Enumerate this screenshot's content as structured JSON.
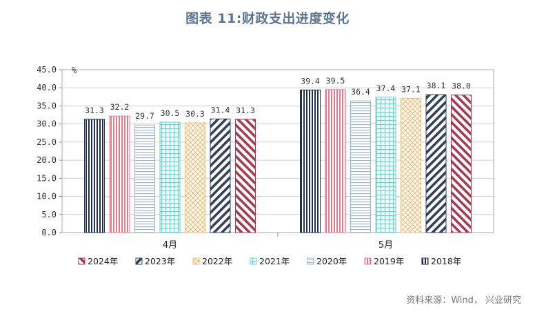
{
  "title": "图表 11:财政支出进度变化",
  "source": "资料来源：Wind， 兴业研究",
  "chart_data": {
    "type": "bar",
    "title": "图表 11:财政支出进度变化",
    "xlabel": "",
    "ylabel": "%",
    "ylim": [
      0,
      45
    ],
    "yticks": [
      "0.0",
      "5.0",
      "10.0",
      "15.0",
      "20.0",
      "25.0",
      "30.0",
      "35.0",
      "40.0",
      "45.0"
    ],
    "grid": true,
    "legend_position": "bottom",
    "categories": [
      "4月",
      "5月"
    ],
    "series": [
      {
        "name": "2018年",
        "values": [
          31.3,
          39.4
        ],
        "color": "#1f2f4f",
        "pattern": "vertical-lines"
      },
      {
        "name": "2019年",
        "values": [
          32.2,
          39.5
        ],
        "color": "#e8788a",
        "pattern": "vertical-lines"
      },
      {
        "name": "2020年",
        "values": [
          29.7,
          36.4
        ],
        "color": "#9fb3c8",
        "pattern": "horizontal-lines"
      },
      {
        "name": "2021年",
        "values": [
          30.5,
          37.4
        ],
        "color": "#5fd3d0",
        "pattern": "grid"
      },
      {
        "name": "2022年",
        "values": [
          30.3,
          37.1
        ],
        "color": "#f0b96b",
        "pattern": "crosshatch"
      },
      {
        "name": "2023年",
        "values": [
          31.4,
          38.1
        ],
        "color": "#2f4159",
        "pattern": "diagonal-up"
      },
      {
        "name": "2024年",
        "values": [
          31.3,
          38.0
        ],
        "color": "#a33a4f",
        "pattern": "diagonal-down"
      }
    ],
    "legend_order": [
      "2024年",
      "2023年",
      "2022年",
      "2021年",
      "2020年",
      "2019年",
      "2018年"
    ]
  }
}
